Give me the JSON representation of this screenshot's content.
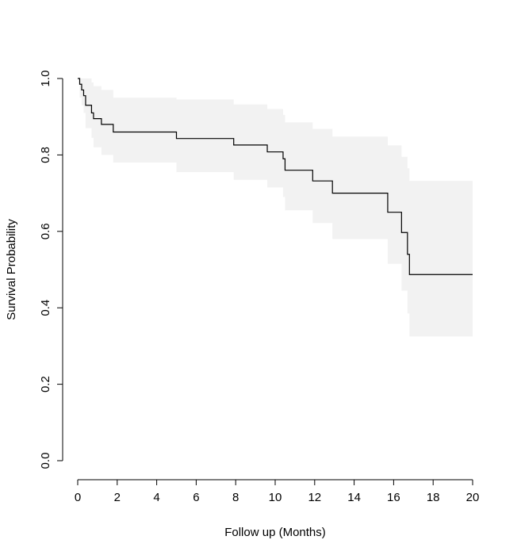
{
  "chart_data": {
    "type": "line",
    "title": "",
    "xlabel": "Follow up (Months)",
    "ylabel": "Survival Probability",
    "xlim": [
      0,
      20
    ],
    "ylim": [
      0,
      1
    ],
    "x_ticks": [
      "0",
      "2",
      "4",
      "6",
      "8",
      "10",
      "12",
      "14",
      "16",
      "18",
      "20"
    ],
    "y_ticks": [
      "0.0",
      "0.2",
      "0.4",
      "0.6",
      "0.8",
      "1.0"
    ],
    "grid": false,
    "legend": "none",
    "colors": {
      "curve": "#000000",
      "band": "#f2f2f2",
      "axis": "#000000"
    },
    "series": [
      {
        "kind": "step",
        "points": [
          [
            0.0,
            1.0
          ],
          [
            0.1,
            0.985
          ],
          [
            0.2,
            0.97
          ],
          [
            0.3,
            0.955
          ],
          [
            0.4,
            0.93
          ],
          [
            0.7,
            0.91
          ],
          [
            0.8,
            0.895
          ],
          [
            1.2,
            0.88
          ],
          [
            1.8,
            0.86
          ],
          [
            5.0,
            0.843
          ],
          [
            7.9,
            0.826
          ],
          [
            9.6,
            0.808
          ],
          [
            10.4,
            0.79
          ],
          [
            10.5,
            0.76
          ],
          [
            11.9,
            0.732
          ],
          [
            12.9,
            0.7
          ],
          [
            15.7,
            0.65
          ],
          [
            16.4,
            0.597
          ],
          [
            16.7,
            0.54
          ],
          [
            16.8,
            0.487
          ],
          [
            20.0,
            0.487
          ]
        ]
      },
      {
        "kind": "band",
        "points": [
          [
            0.0,
            1.0,
            1.0
          ],
          [
            0.1,
            1.0,
            0.95
          ],
          [
            0.2,
            1.0,
            0.93
          ],
          [
            0.3,
            1.0,
            0.91
          ],
          [
            0.4,
            1.0,
            0.87
          ],
          [
            0.7,
            0.99,
            0.845
          ],
          [
            0.8,
            0.98,
            0.82
          ],
          [
            1.2,
            0.97,
            0.8
          ],
          [
            1.8,
            0.95,
            0.78
          ],
          [
            5.0,
            0.945,
            0.755
          ],
          [
            7.9,
            0.932,
            0.735
          ],
          [
            9.6,
            0.92,
            0.715
          ],
          [
            10.4,
            0.905,
            0.69
          ],
          [
            10.5,
            0.885,
            0.655
          ],
          [
            11.9,
            0.868,
            0.622
          ],
          [
            12.9,
            0.848,
            0.58
          ],
          [
            15.7,
            0.825,
            0.515
          ],
          [
            16.4,
            0.795,
            0.445
          ],
          [
            16.7,
            0.765,
            0.385
          ],
          [
            16.8,
            0.732,
            0.325
          ],
          [
            20.0,
            0.732,
            0.325
          ]
        ]
      }
    ]
  }
}
